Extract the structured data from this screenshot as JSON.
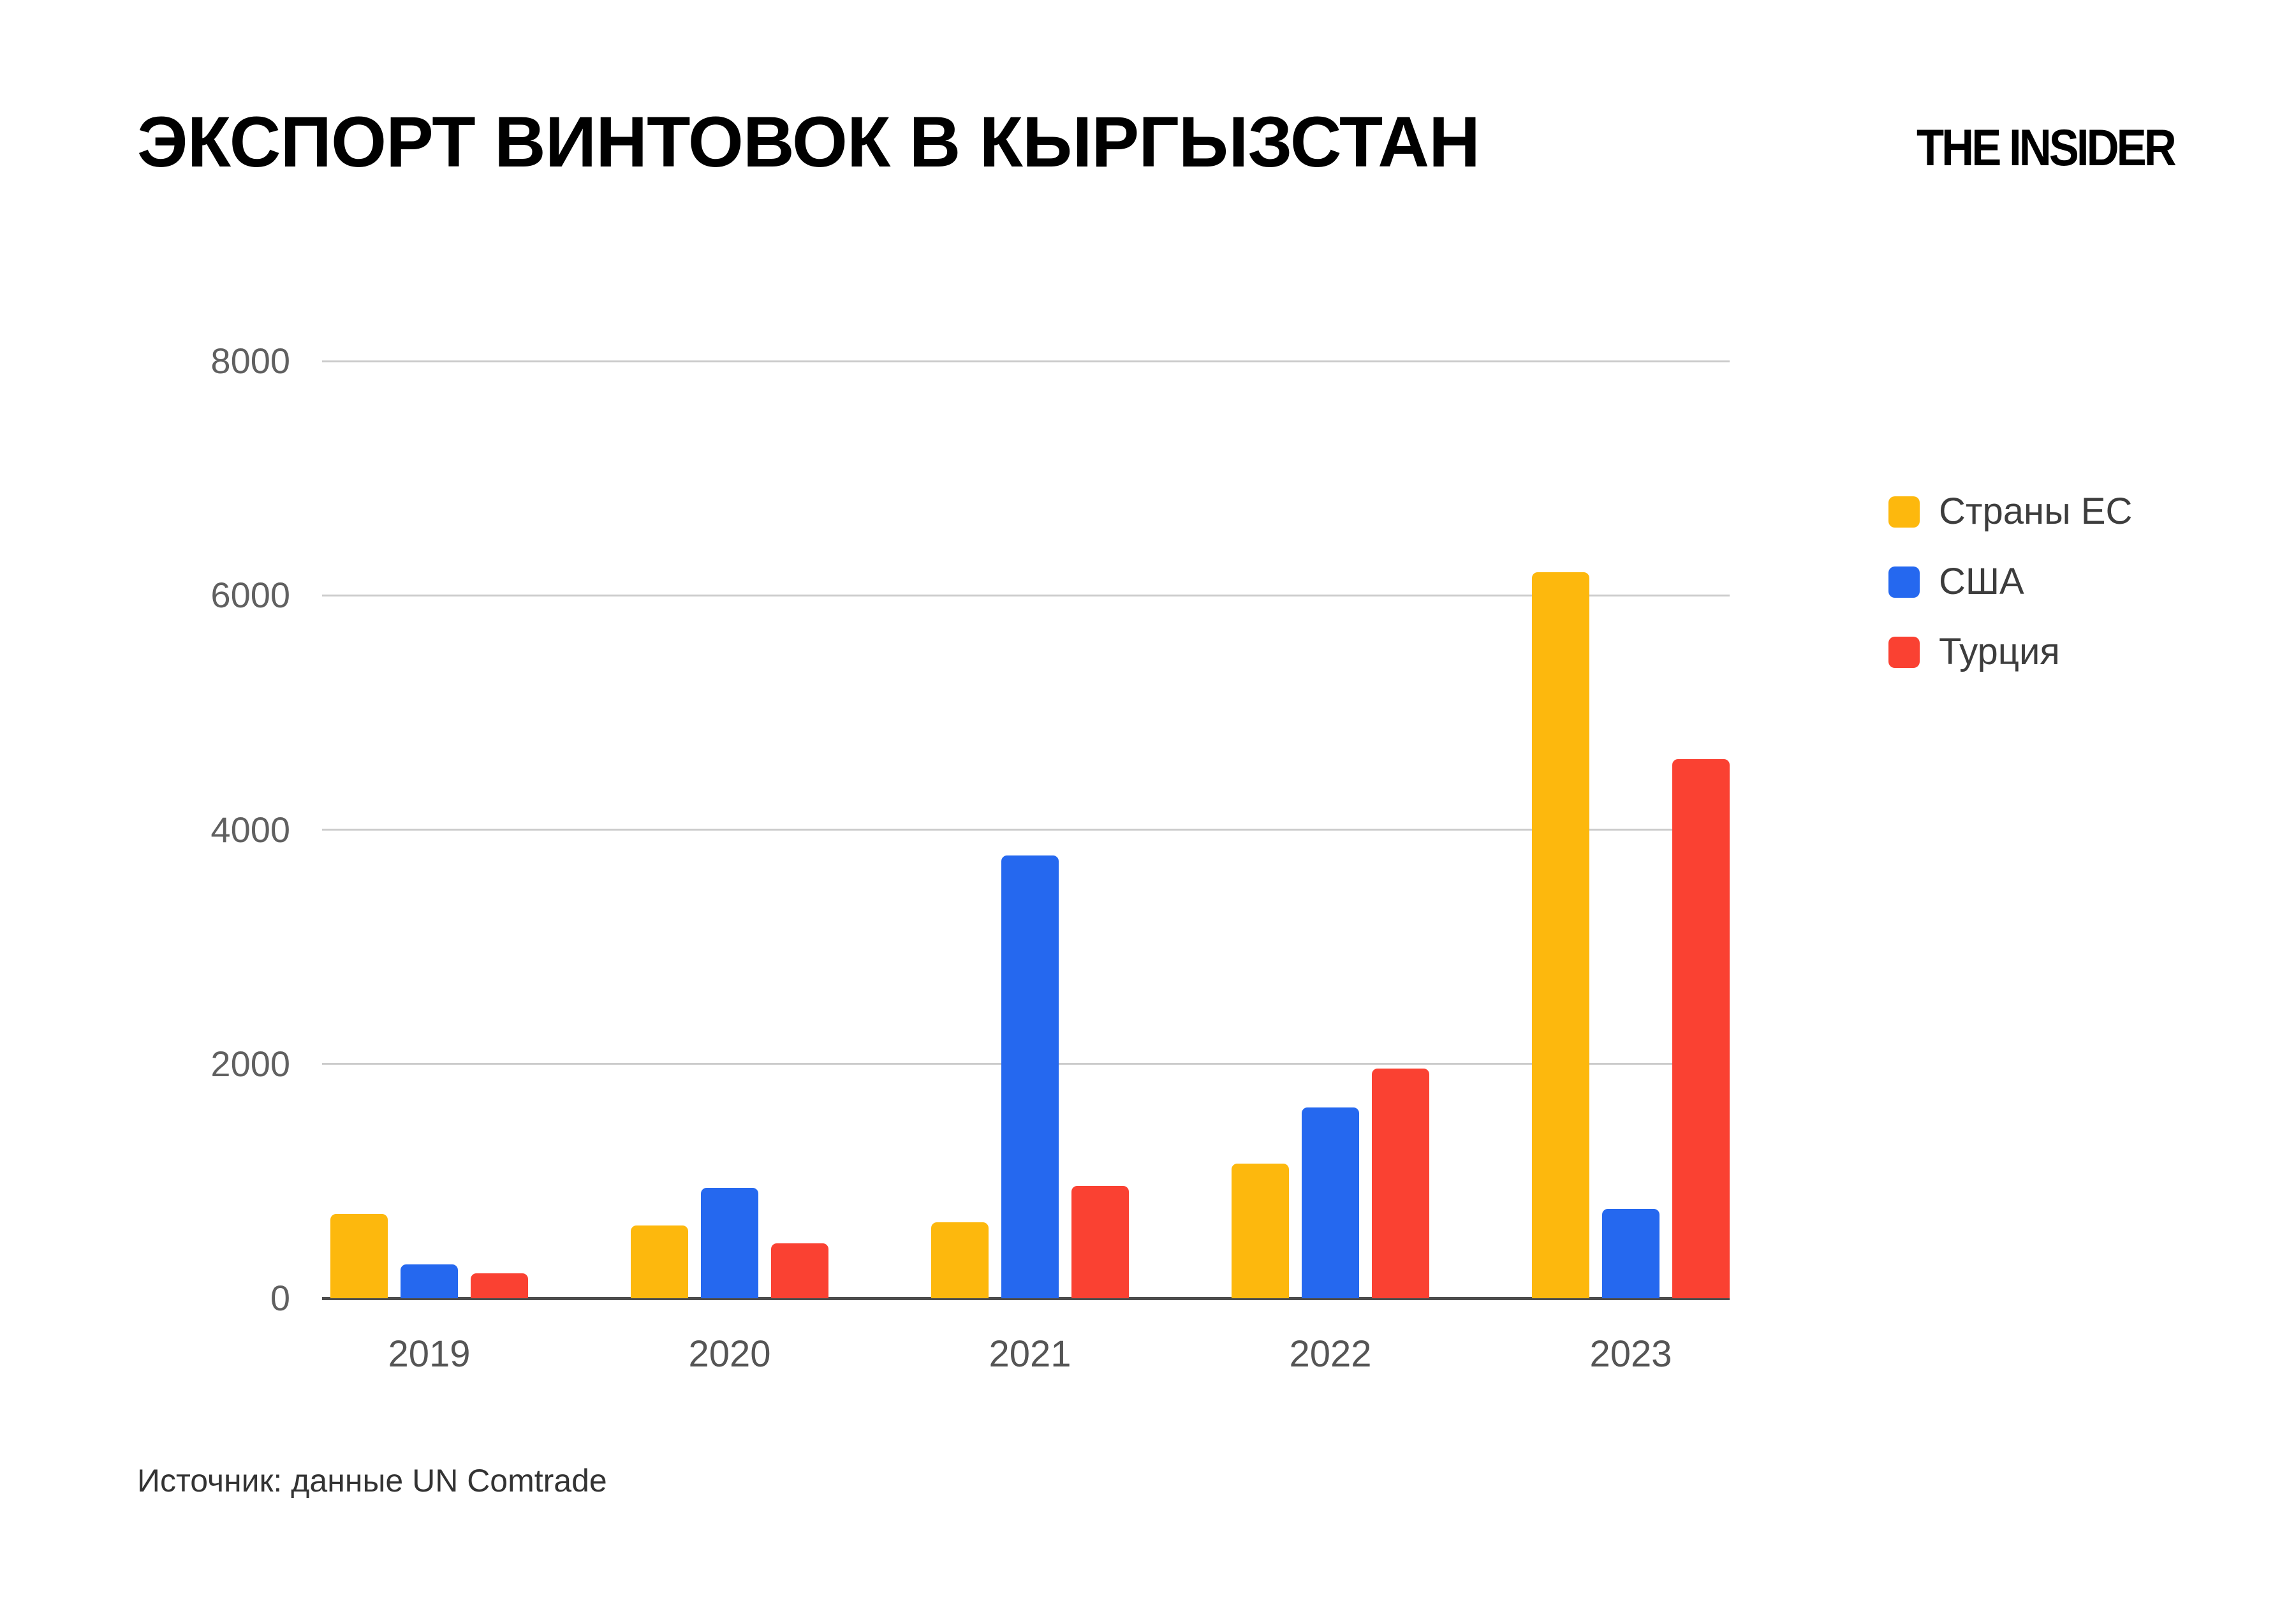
{
  "header": {
    "title": "ЭКСПОРТ ВИНТОВОК В КЫРГЫЗСТАН",
    "logo": "THE INSIDER"
  },
  "source_note": "Источник: данные UN Comtrade",
  "chart_data": {
    "type": "bar",
    "title": "ЭКСПОРТ ВИНТОВОК В КЫРГЫЗСТАН",
    "xlabel": "",
    "ylabel": "",
    "categories": [
      "2019",
      "2020",
      "2021",
      "2022",
      "2023"
    ],
    "series": [
      {
        "name": "Страны ЕС",
        "color": "#FDB80D",
        "values": [
          720,
          620,
          650,
          1150,
          6200
        ]
      },
      {
        "name": "США",
        "color": "#2568EF",
        "values": [
          290,
          940,
          3780,
          1630,
          760
        ]
      },
      {
        "name": "Турция",
        "color": "#FA4132",
        "values": [
          210,
          470,
          960,
          1960,
          4600
        ]
      }
    ],
    "ylim": [
      0,
      8000
    ],
    "yticks": [
      0,
      2000,
      4000,
      6000,
      8000
    ],
    "grid": true,
    "legend_position": "right",
    "source": "Источник: данные UN Comtrade"
  },
  "colors": {
    "gridline": "#cbcbcb",
    "axis": "#4d4d4d",
    "tick_label": "#606060",
    "legend_text": "#3d3d3d",
    "background": "#ffffff"
  }
}
